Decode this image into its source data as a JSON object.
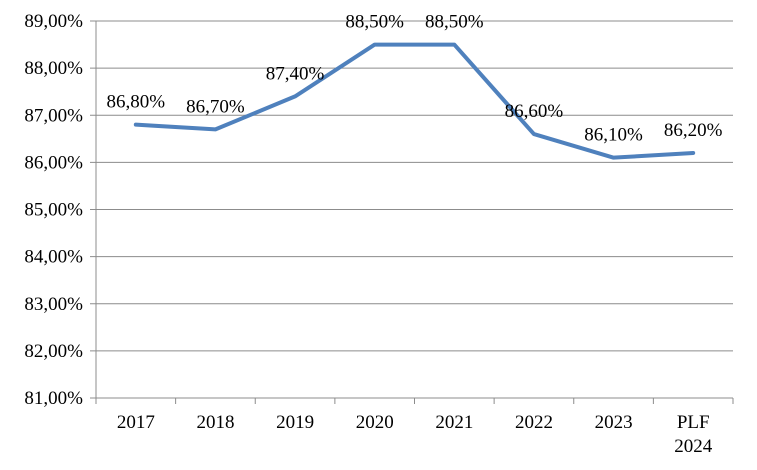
{
  "chart_data": {
    "type": "line",
    "title": "",
    "xlabel": "",
    "ylabel": "",
    "categories": [
      "2017",
      "2018",
      "2019",
      "2020",
      "2021",
      "2022",
      "2023",
      "PLF 2024"
    ],
    "values": [
      86.8,
      86.7,
      87.4,
      88.5,
      88.5,
      86.6,
      86.1,
      86.2
    ],
    "point_labels": [
      "86,80%",
      "86,70%",
      "87,40%",
      "88,50%",
      "88,50%",
      "86,60%",
      "86,10%",
      "86,20%"
    ],
    "ylim": [
      81,
      89
    ],
    "y_tick_step": 1,
    "y_tick_labels": [
      "81,00%",
      "82,00%",
      "83,00%",
      "84,00%",
      "85,00%",
      "86,00%",
      "87,00%",
      "88,00%",
      "89,00%"
    ],
    "grid": true,
    "legend": "none",
    "line_color": "#4F81BD",
    "axis_color": "#8C8C8C",
    "gridline_color": "#8C8C8C",
    "text_color": "#000000"
  }
}
